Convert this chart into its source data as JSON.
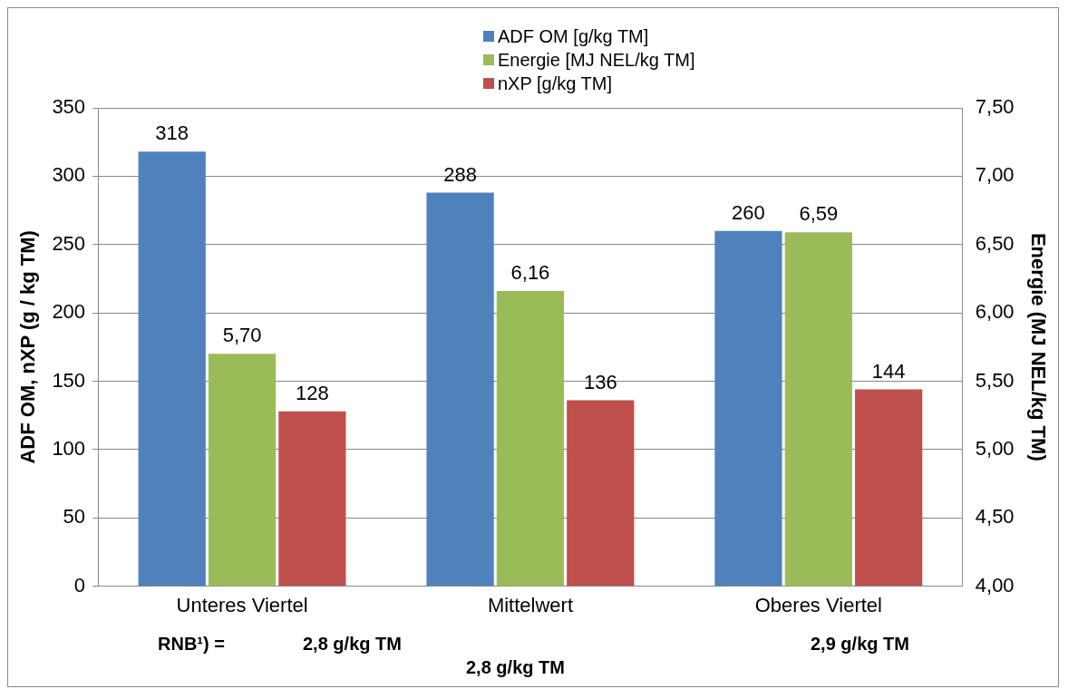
{
  "chart_data": {
    "type": "bar",
    "categories": [
      "Unteres Viertel",
      "Mittelwert",
      "Oberes Viertel"
    ],
    "series": [
      {
        "name": "ADF OM [g/kg TM]",
        "color": "#4f81bd",
        "values": [
          318,
          288,
          260
        ],
        "value_labels": [
          "318",
          "288",
          "260"
        ]
      },
      {
        "name": "Energie [MJ NEL/kg TM]",
        "color": "#9bbb59",
        "values": [
          5.7,
          6.16,
          6.59
        ],
        "axis": "y2",
        "value_labels": [
          "5,70",
          "6,16",
          "6,59"
        ]
      },
      {
        "name": "nXP [g/kg TM]",
        "color": "#c0504d",
        "values": [
          128,
          136,
          144
        ],
        "value_labels": [
          "128",
          "136",
          "144"
        ]
      }
    ],
    "ylabel": "ADF OM, nXP (g / kg TM)",
    "y2label": "Energie (MJ NEL/kg TM)",
    "ylim": [
      0,
      350
    ],
    "yticks": [
      0,
      50,
      100,
      150,
      200,
      250,
      300,
      350
    ],
    "y2lim": [
      4,
      7.5
    ],
    "y2ticks": [
      {
        "value": 4,
        "label": "4,00"
      },
      {
        "value": 4.5,
        "label": "4,50"
      },
      {
        "value": 5,
        "label": "5,00"
      },
      {
        "value": 5.5,
        "label": "5,50"
      },
      {
        "value": 6,
        "label": "6,00"
      },
      {
        "value": 6.5,
        "label": "6,50"
      },
      {
        "value": 7,
        "label": "7,00"
      },
      {
        "value": 7.5,
        "label": "7,50"
      }
    ],
    "grid": "y",
    "legend": "top",
    "annotations": [
      "RNB¹) =",
      "2,8 g/kg TM",
      "2,8 g/kg TM",
      "2,9 g/kg TM"
    ]
  }
}
